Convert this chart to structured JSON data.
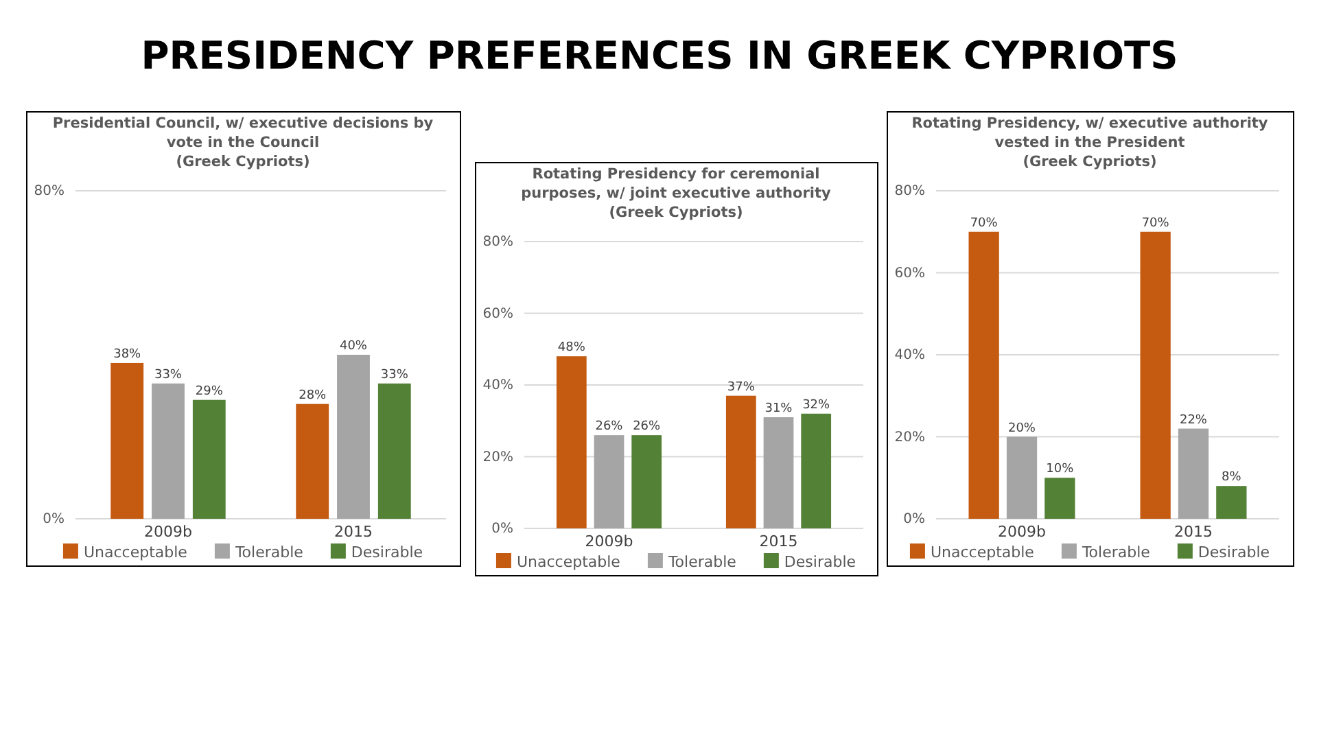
{
  "chart_data": [
    {
      "type": "other",
      "title": "PRESIDENCY PREFERENCES IN GREEK CYPRIOTS"
    },
    {
      "type": "bar",
      "title": "Presidential Council, w/ executive decisions by vote in the Council",
      "subtitle": "(Greek Cypriots)",
      "categories": [
        "2009b",
        "2015"
      ],
      "series": [
        {
          "name": "Unacceptable",
          "color": "#c55a11",
          "values": [
            38,
            28
          ],
          "value_labels": [
            "38%",
            "28%"
          ]
        },
        {
          "name": "Tolerable",
          "color": "#a5a5a5",
          "values": [
            33,
            40
          ],
          "value_labels": [
            "33%",
            "40%"
          ]
        },
        {
          "name": "Desirable",
          "color": "#538135",
          "values": [
            29,
            33
          ],
          "value_labels": [
            "29%",
            "33%"
          ]
        }
      ],
      "ylim": [
        0,
        80
      ],
      "yticks": [
        {
          "value": 0,
          "label": "0%"
        },
        {
          "value": 80,
          "label": "80%"
        }
      ],
      "grid": "y",
      "legend": "bottom"
    },
    {
      "type": "bar",
      "title": "Rotating Presidency for ceremonial purposes, w/ joint executive authority",
      "subtitle": "(Greek Cypriots)",
      "categories": [
        "2009b",
        "2015"
      ],
      "series": [
        {
          "name": "Unacceptable",
          "color": "#c55a11",
          "values": [
            48,
            37
          ],
          "value_labels": [
            "48%",
            "37%"
          ]
        },
        {
          "name": "Tolerable",
          "color": "#a5a5a5",
          "values": [
            26,
            31
          ],
          "value_labels": [
            "26%",
            "31%"
          ]
        },
        {
          "name": "Desirable",
          "color": "#538135",
          "values": [
            26,
            32
          ],
          "value_labels": [
            "26%",
            "32%"
          ]
        }
      ],
      "ylim": [
        0,
        80
      ],
      "yticks": [
        {
          "value": 0,
          "label": "0%"
        },
        {
          "value": 20,
          "label": "20%"
        },
        {
          "value": 40,
          "label": "40%"
        },
        {
          "value": 60,
          "label": "60%"
        },
        {
          "value": 80,
          "label": "80%"
        }
      ],
      "grid": "y",
      "legend": "bottom"
    },
    {
      "type": "bar",
      "title": "Rotating Presidency, w/ executive authority vested in the President",
      "subtitle": "(Greek Cypriots)",
      "categories": [
        "2009b",
        "2015"
      ],
      "series": [
        {
          "name": "Unacceptable",
          "color": "#c55a11",
          "values": [
            70,
            70
          ],
          "value_labels": [
            "70%",
            "70%"
          ]
        },
        {
          "name": "Tolerable",
          "color": "#a5a5a5",
          "values": [
            20,
            22
          ],
          "value_labels": [
            "20%",
            "22%"
          ]
        },
        {
          "name": "Desirable",
          "color": "#538135",
          "values": [
            10,
            8
          ],
          "value_labels": [
            "10%",
            "8%"
          ]
        }
      ],
      "ylim": [
        0,
        80
      ],
      "yticks": [
        {
          "value": 0,
          "label": "0%"
        },
        {
          "value": 20,
          "label": "20%"
        },
        {
          "value": 40,
          "label": "40%"
        },
        {
          "value": 60,
          "label": "60%"
        },
        {
          "value": 80,
          "label": "80%"
        }
      ],
      "grid": "y",
      "legend": "bottom"
    }
  ]
}
